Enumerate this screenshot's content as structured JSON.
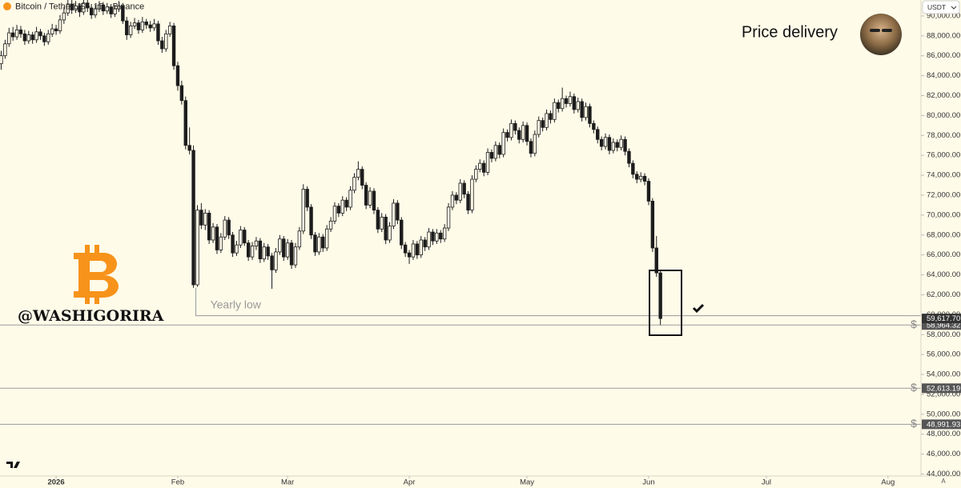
{
  "chart_data": {
    "type": "candlestick",
    "title": "Bitcoin / TetherUS · 1D · Binance",
    "note": "Price delivery",
    "watermark": "@WASHIGORIRA",
    "currency": "USDT",
    "scale_mode": "A",
    "level_icon": "$",
    "up_color": "#fffbe9",
    "down_color": "#1c1c1c",
    "wick_color": "#1c1c1c",
    "xlim": [
      -0.3,
      234.4
    ],
    "ylim": [
      43800,
      91600
    ],
    "xticks": [
      {
        "value": 14,
        "label": "2026"
      },
      {
        "value": 45,
        "label": "Feb"
      },
      {
        "value": 73,
        "label": "Mar"
      },
      {
        "value": 104,
        "label": "Apr"
      },
      {
        "value": 134,
        "label": "May"
      },
      {
        "value": 165,
        "label": "Jun"
      },
      {
        "value": 195,
        "label": "Jul"
      },
      {
        "value": 226,
        "label": "Aug"
      }
    ],
    "yticks": [
      {
        "value": 44000,
        "label": "44,000.00"
      },
      {
        "value": 46000,
        "label": "46,000.00"
      },
      {
        "value": 48000,
        "label": "48,000.00"
      },
      {
        "value": 50000,
        "label": "50,000.00"
      },
      {
        "value": 52000,
        "label": "52,000.00"
      },
      {
        "value": 54000,
        "label": "54,000.00"
      },
      {
        "value": 56000,
        "label": "56,000.00"
      },
      {
        "value": 58000,
        "label": "58,000.00"
      },
      {
        "value": 60000,
        "label": "60,000.00"
      },
      {
        "value": 62000,
        "label": "62,000.00"
      },
      {
        "value": 64000,
        "label": "64,000.00"
      },
      {
        "value": 66000,
        "label": "66,000.00"
      },
      {
        "value": 68000,
        "label": "68,000.00"
      },
      {
        "value": 70000,
        "label": "70,000.00"
      },
      {
        "value": 72000,
        "label": "72,000.00"
      },
      {
        "value": 74000,
        "label": "74,000.00"
      },
      {
        "value": 76000,
        "label": "76,000.00"
      },
      {
        "value": 78000,
        "label": "78,000.00"
      },
      {
        "value": 80000,
        "label": "80,000.00"
      },
      {
        "value": 82000,
        "label": "82,000.00"
      },
      {
        "value": 84000,
        "label": "84,000.00"
      },
      {
        "value": 86000,
        "label": "86,000.00"
      },
      {
        "value": 88000,
        "label": "88,000.00"
      },
      {
        "value": 90000,
        "label": "90,000.00"
      }
    ],
    "levels": [
      {
        "value": 58964.32,
        "label": "58,964.32"
      },
      {
        "value": 52613.19,
        "label": "52,613.19"
      },
      {
        "value": 48991.93,
        "label": "48,991.93"
      }
    ],
    "last_price": {
      "value": 59617.7,
      "label": "59,617.70"
    },
    "yearly_low": {
      "value": 59900,
      "label": "Yearly low",
      "x": 49
    },
    "ohlc": [
      [
        85200,
        86500,
        84600,
        86000
      ],
      [
        86000,
        87600,
        85700,
        87200
      ],
      [
        87200,
        88800,
        86900,
        88300
      ],
      [
        88300,
        88900,
        87500,
        87900
      ],
      [
        87900,
        89100,
        87600,
        88600
      ],
      [
        88600,
        89000,
        87800,
        88200
      ],
      [
        88200,
        88600,
        87100,
        87500
      ],
      [
        87500,
        88500,
        87200,
        88100
      ],
      [
        88100,
        88400,
        87200,
        87600
      ],
      [
        87600,
        88900,
        87300,
        88400
      ],
      [
        88400,
        88700,
        87600,
        88000
      ],
      [
        88000,
        88300,
        87000,
        87400
      ],
      [
        87400,
        88600,
        87100,
        88200
      ],
      [
        88200,
        89200,
        87900,
        88700
      ],
      [
        88700,
        89100,
        88100,
        88500
      ],
      [
        88500,
        90100,
        88200,
        89600
      ],
      [
        89600,
        90900,
        89200,
        90300
      ],
      [
        90300,
        91800,
        90000,
        91200
      ],
      [
        91200,
        91600,
        90200,
        90600
      ],
      [
        90600,
        91500,
        90300,
        91000
      ],
      [
        91000,
        91300,
        89900,
        90400
      ],
      [
        90400,
        91700,
        90100,
        91300
      ],
      [
        91300,
        91600,
        90400,
        90800
      ],
      [
        90800,
        91200,
        89700,
        90100
      ],
      [
        90100,
        91100,
        89800,
        90700
      ],
      [
        90700,
        91500,
        90400,
        91100
      ],
      [
        91100,
        91400,
        90100,
        90500
      ],
      [
        90500,
        91300,
        90200,
        90900
      ],
      [
        90900,
        91200,
        89800,
        90200
      ],
      [
        90200,
        91100,
        89900,
        90700
      ],
      [
        90700,
        91500,
        90400,
        91000
      ],
      [
        91000,
        91300,
        89200,
        89500
      ],
      [
        89500,
        89900,
        87600,
        88100
      ],
      [
        88100,
        89400,
        87800,
        89000
      ],
      [
        89000,
        89800,
        88700,
        89300
      ],
      [
        89300,
        89600,
        88200,
        88600
      ],
      [
        88600,
        89900,
        88300,
        89400
      ],
      [
        89400,
        89700,
        88700,
        89100
      ],
      [
        89100,
        89500,
        88400,
        88800
      ],
      [
        88800,
        89700,
        88500,
        89200
      ],
      [
        89200,
        89500,
        87100,
        87500
      ],
      [
        87500,
        87900,
        86300,
        86700
      ],
      [
        86700,
        88600,
        86400,
        88200
      ],
      [
        88200,
        89400,
        87900,
        89000
      ],
      [
        89000,
        89300,
        84600,
        85000
      ],
      [
        85000,
        85400,
        82500,
        83000
      ],
      [
        83000,
        83500,
        81100,
        81500
      ],
      [
        81500,
        81900,
        76600,
        77000
      ],
      [
        77000,
        78800,
        76100,
        76500
      ],
      [
        76500,
        77000,
        62700,
        63000
      ],
      [
        63000,
        71000,
        62800,
        70500
      ],
      [
        70500,
        71200,
        68600,
        69000
      ],
      [
        69000,
        70600,
        68500,
        70200
      ],
      [
        70200,
        70500,
        67100,
        67500
      ],
      [
        67500,
        69200,
        67200,
        68800
      ],
      [
        68800,
        69100,
        66100,
        66500
      ],
      [
        66500,
        68200,
        66200,
        67800
      ],
      [
        67800,
        69900,
        67500,
        69500
      ],
      [
        69500,
        69800,
        67600,
        68000
      ],
      [
        68000,
        68300,
        65800,
        66200
      ],
      [
        66200,
        67400,
        65900,
        67000
      ],
      [
        67000,
        68900,
        66700,
        68500
      ],
      [
        68500,
        68800,
        66900,
        67200
      ],
      [
        67200,
        67500,
        65400,
        65800
      ],
      [
        65800,
        67300,
        65500,
        66900
      ],
      [
        66900,
        67800,
        66500,
        67400
      ],
      [
        67400,
        67700,
        65200,
        65600
      ],
      [
        65600,
        67200,
        65300,
        66800
      ],
      [
        66800,
        67100,
        65500,
        65900
      ],
      [
        65900,
        66200,
        62600,
        64500
      ],
      [
        64500,
        66700,
        64200,
        66300
      ],
      [
        66300,
        68000,
        66000,
        67600
      ],
      [
        67600,
        67900,
        65400,
        65800
      ],
      [
        65800,
        67600,
        65500,
        67200
      ],
      [
        67200,
        67500,
        64600,
        65000
      ],
      [
        65000,
        67200,
        64700,
        66800
      ],
      [
        66800,
        68800,
        66500,
        68400
      ],
      [
        68400,
        73100,
        68100,
        72600
      ],
      [
        72600,
        72900,
        70400,
        70800
      ],
      [
        70800,
        71100,
        67600,
        68000
      ],
      [
        68000,
        68300,
        65900,
        66300
      ],
      [
        66300,
        68200,
        66000,
        67800
      ],
      [
        67800,
        68100,
        66300,
        66700
      ],
      [
        66700,
        69000,
        66400,
        68600
      ],
      [
        68600,
        69800,
        68300,
        69400
      ],
      [
        69400,
        71300,
        69100,
        70900
      ],
      [
        70900,
        71200,
        69800,
        70200
      ],
      [
        70200,
        71900,
        69900,
        71500
      ],
      [
        71500,
        71800,
        70400,
        70800
      ],
      [
        70800,
        72900,
        70500,
        72500
      ],
      [
        72500,
        74200,
        72200,
        73800
      ],
      [
        73800,
        75400,
        73500,
        74600
      ],
      [
        74600,
        74900,
        72600,
        73000
      ],
      [
        73000,
        73300,
        70600,
        71000
      ],
      [
        71000,
        72800,
        70700,
        72400
      ],
      [
        72400,
        72700,
        70100,
        70500
      ],
      [
        70500,
        70800,
        68200,
        68600
      ],
      [
        68600,
        70200,
        68300,
        69800
      ],
      [
        69800,
        70100,
        67100,
        67500
      ],
      [
        67500,
        69300,
        67200,
        68900
      ],
      [
        68900,
        71600,
        68600,
        71200
      ],
      [
        71200,
        71500,
        69100,
        69500
      ],
      [
        69500,
        69800,
        66600,
        67000
      ],
      [
        67000,
        67300,
        65800,
        66200
      ],
      [
        66200,
        66500,
        65100,
        65800
      ],
      [
        65800,
        67500,
        65500,
        67100
      ],
      [
        67100,
        67400,
        65600,
        66000
      ],
      [
        66000,
        67900,
        65700,
        67500
      ],
      [
        67500,
        67800,
        66400,
        66800
      ],
      [
        66800,
        68700,
        66500,
        68300
      ],
      [
        68300,
        68600,
        67000,
        67400
      ],
      [
        67400,
        68600,
        67100,
        68200
      ],
      [
        68200,
        68500,
        67200,
        67600
      ],
      [
        67600,
        69100,
        67300,
        68700
      ],
      [
        68700,
        71200,
        68400,
        70800
      ],
      [
        70800,
        72400,
        70500,
        72000
      ],
      [
        72000,
        72300,
        71100,
        71500
      ],
      [
        71500,
        73600,
        71200,
        73200
      ],
      [
        73200,
        73500,
        71700,
        72100
      ],
      [
        72100,
        72400,
        70100,
        70500
      ],
      [
        70500,
        74000,
        70200,
        73600
      ],
      [
        73600,
        75000,
        73300,
        74600
      ],
      [
        74600,
        75600,
        74300,
        75200
      ],
      [
        75200,
        75500,
        73900,
        74300
      ],
      [
        74300,
        76700,
        74000,
        76300
      ],
      [
        76300,
        76600,
        75300,
        75700
      ],
      [
        75700,
        77400,
        75400,
        77000
      ],
      [
        77000,
        77300,
        75700,
        76100
      ],
      [
        76100,
        78700,
        75800,
        78300
      ],
      [
        78300,
        78600,
        77400,
        77800
      ],
      [
        77800,
        79600,
        77500,
        79200
      ],
      [
        79200,
        79500,
        78100,
        78500
      ],
      [
        78500,
        78800,
        77200,
        77600
      ],
      [
        77600,
        79400,
        77300,
        79000
      ],
      [
        79000,
        79300,
        77000,
        77400
      ],
      [
        77400,
        77700,
        75800,
        76200
      ],
      [
        76200,
        78500,
        75900,
        78100
      ],
      [
        78100,
        79900,
        77800,
        79500
      ],
      [
        79500,
        79800,
        78400,
        78800
      ],
      [
        78800,
        80600,
        78500,
        80200
      ],
      [
        80200,
        80500,
        79200,
        79600
      ],
      [
        79600,
        81700,
        79300,
        81300
      ],
      [
        81300,
        81600,
        80300,
        80700
      ],
      [
        80700,
        82800,
        80400,
        81700
      ],
      [
        81700,
        82000,
        80800,
        81200
      ],
      [
        81200,
        82400,
        80900,
        81900
      ],
      [
        81900,
        82200,
        80200,
        80600
      ],
      [
        80600,
        81800,
        80300,
        81400
      ],
      [
        81400,
        81700,
        79400,
        79800
      ],
      [
        79800,
        81300,
        79500,
        80900
      ],
      [
        80900,
        81200,
        78800,
        79200
      ],
      [
        79200,
        79500,
        78200,
        78600
      ],
      [
        78600,
        78900,
        77200,
        77600
      ],
      [
        77600,
        77900,
        76500,
        76900
      ],
      [
        76900,
        78200,
        76600,
        77800
      ],
      [
        77800,
        78100,
        76100,
        76500
      ],
      [
        76500,
        77700,
        76200,
        77300
      ],
      [
        77300,
        77600,
        76400,
        76800
      ],
      [
        76800,
        78000,
        76500,
        77600
      ],
      [
        77600,
        77900,
        76000,
        76400
      ],
      [
        76400,
        76700,
        74800,
        75200
      ],
      [
        75200,
        75500,
        73700,
        74100
      ],
      [
        74100,
        74400,
        73200,
        73600
      ],
      [
        73600,
        74300,
        73300,
        73900
      ],
      [
        73900,
        74200,
        73000,
        73400
      ],
      [
        73400,
        73700,
        71000,
        71400
      ],
      [
        71400,
        71700,
        66300,
        66700
      ],
      [
        66700,
        67900,
        63800,
        64200
      ],
      [
        64200,
        64500,
        58964.32,
        59617.7
      ]
    ]
  }
}
